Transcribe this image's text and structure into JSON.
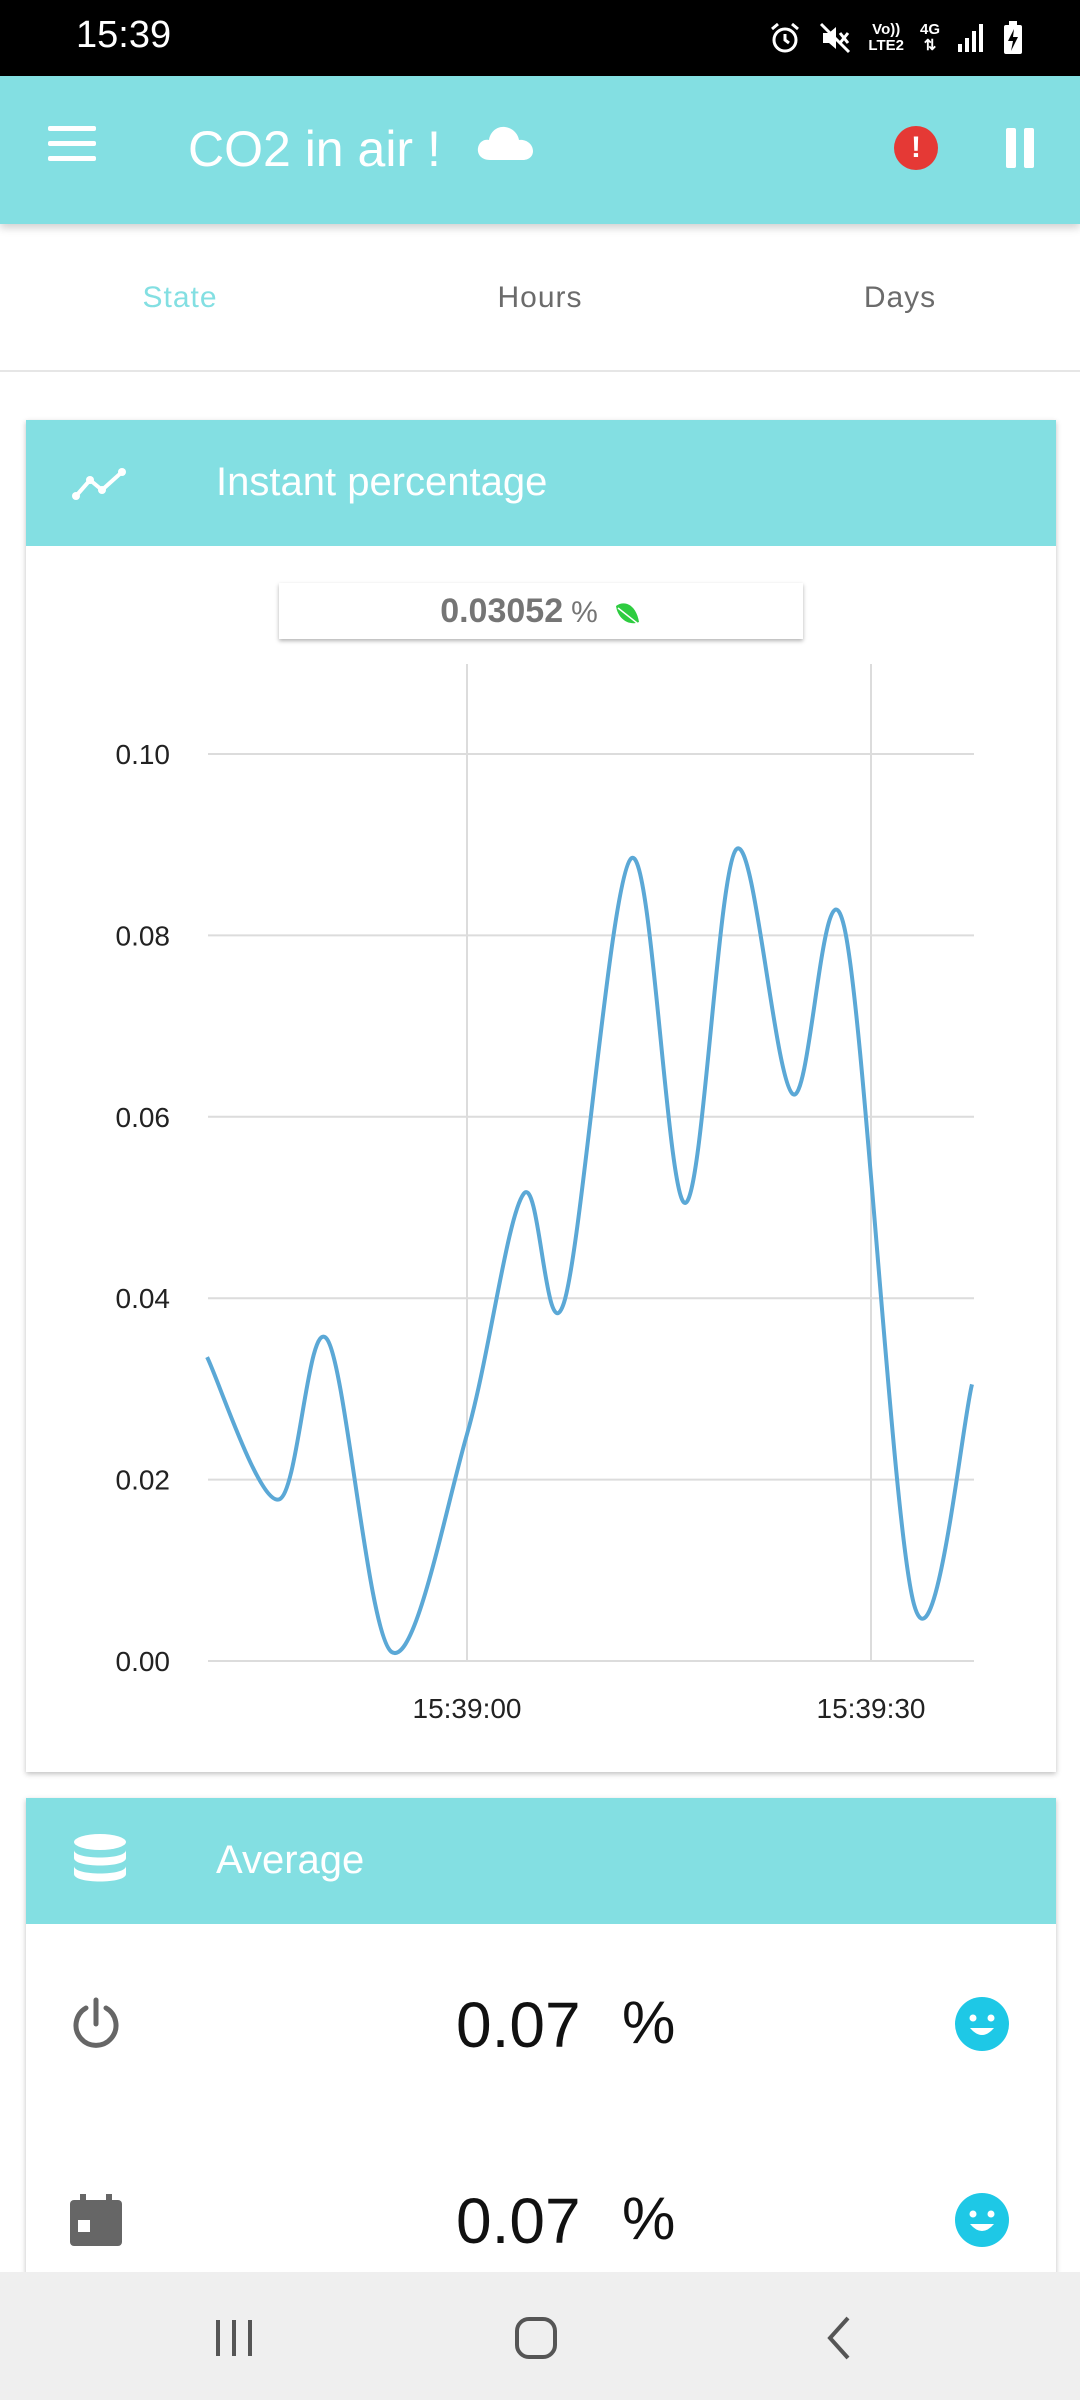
{
  "status_bar": {
    "time": "15:39",
    "volte_label_top": "Vo))",
    "volte_label_bottom": "LTE2",
    "network": "4G"
  },
  "app_bar": {
    "title": "CO2 in air !",
    "accent_color": "#83dfe2",
    "alert_symbol": "!"
  },
  "tabs": [
    {
      "label": "State",
      "active": true
    },
    {
      "label": "Hours",
      "active": false
    },
    {
      "label": "Days",
      "active": false
    }
  ],
  "instant_card": {
    "title": "Instant percentage",
    "current_value": "0.03052",
    "unit": "%"
  },
  "chart_data": {
    "type": "line",
    "title": "",
    "xlabel": "",
    "ylabel": "",
    "ylim": [
      0,
      0.11
    ],
    "y_ticks": [
      "0.00",
      "0.02",
      "0.04",
      "0.06",
      "0.08",
      "0.10"
    ],
    "x_ticks": [
      "15:39:00",
      "15:39:30"
    ],
    "grid": true,
    "series": [
      {
        "color": "#5ba8d6",
        "x": [
          "15:38:40.7",
          "15:38:46",
          "15:38:49.6",
          "15:38:54.4",
          "15:39:00",
          "15:39:04.2",
          "15:39:07.2",
          "15:39:12.2",
          "15:39:16.2",
          "15:39:20",
          "15:39:24.2",
          "15:39:28",
          "15:39:33.2",
          "15:39:37.5"
        ],
        "values": [
          0.0335,
          0.0178,
          0.0355,
          0.001,
          0.025,
          0.0515,
          0.0395,
          0.0885,
          0.0505,
          0.0895,
          0.0625,
          0.081,
          0.0062,
          0.0305
        ]
      }
    ]
  },
  "average_card": {
    "title": "Average",
    "rows": [
      {
        "icon": "power-icon",
        "value": "0.07",
        "unit": "%"
      },
      {
        "icon": "calendar-icon",
        "value": "0.07",
        "unit": "%"
      }
    ]
  }
}
